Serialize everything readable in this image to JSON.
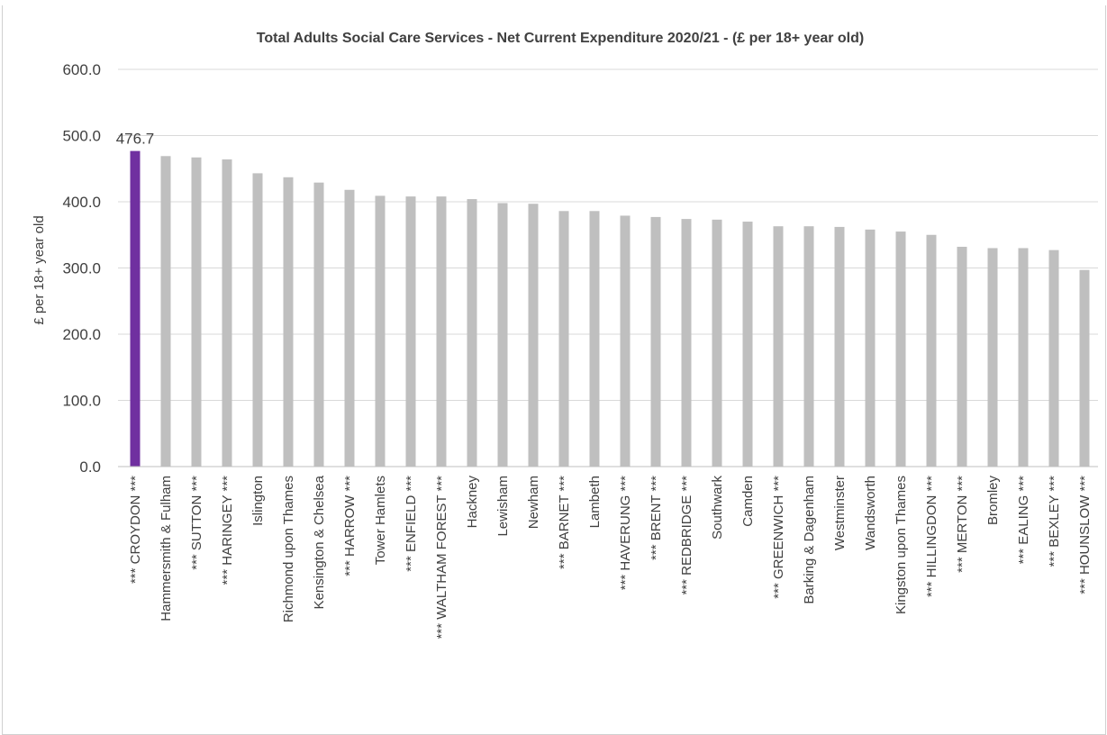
{
  "colors": {
    "highlight": "#7030a0",
    "bar": "#bfbfbf",
    "grid": "#d9d9d9",
    "axis": "#bfbfbf",
    "text": "#404040"
  },
  "chart_data": {
    "type": "bar",
    "title": "Total Adults Social Care Services - Net Current Expenditure 2020/21 - (£ per 18+ year old)",
    "xlabel": "",
    "ylabel": "£ per 18+ year old",
    "ylim": [
      0,
      600
    ],
    "yticks": [
      "0.0",
      "100.0",
      "200.0",
      "300.0",
      "400.0",
      "500.0",
      "600.0"
    ],
    "grid": true,
    "legend": "none",
    "highlight_index": 0,
    "data_labels": [
      {
        "index": 0,
        "text": "476.7"
      }
    ],
    "categories": [
      "*** CROYDON ***",
      "Hammersmith & Fulham",
      "*** SUTTON ***",
      "*** HARINGEY ***",
      "Islington",
      "Richmond upon Thames",
      "Kensington & Chelsea",
      "*** HARROW ***",
      "Tower Hamlets",
      "*** ENFIELD ***",
      "*** WALTHAM FOREST ***",
      "Hackney",
      "Lewisham",
      "Newham",
      "*** BARNET ***",
      "Lambeth",
      "*** HAVERUNG ***",
      "*** BRENT ***",
      "*** REDBRIDGE ***",
      "Southwark",
      "Camden",
      "*** GREENWICH ***",
      "Barking & Dagenham",
      "Westminster",
      "Wandsworth",
      "Kingston upon Thames",
      "*** HILLINGDON ***",
      "*** MERTON ***",
      "Bromley",
      "*** EALING ***",
      "*** BEXLEY ***",
      "*** HOUNSLOW ***"
    ],
    "values": [
      476.7,
      469,
      467,
      464,
      443,
      437,
      429,
      418,
      409,
      408,
      408,
      404,
      398,
      397,
      386,
      386,
      379,
      377,
      374,
      373,
      370,
      363,
      363,
      362,
      358,
      355,
      350,
      332,
      330,
      330,
      327,
      297
    ]
  }
}
